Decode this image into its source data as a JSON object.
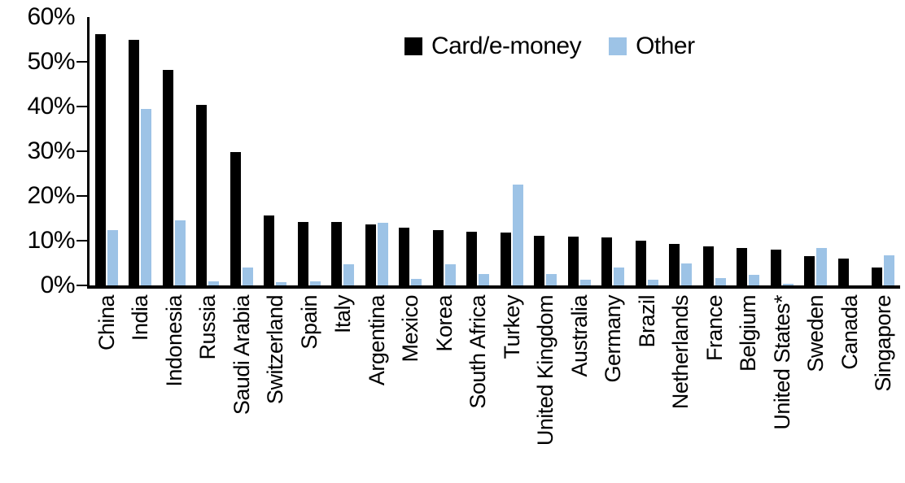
{
  "colors": {
    "card": "#000000",
    "other": "#9DC3E6",
    "axis": "#000000",
    "background": "#FFFFFF"
  },
  "legend": {
    "card_label": "Card/e-money",
    "other_label": "Other"
  },
  "chart_data": {
    "type": "bar",
    "title": "",
    "xlabel": "",
    "ylabel": "",
    "ylim": [
      0,
      60
    ],
    "ytick_labels": [
      "0%",
      "10%",
      "20%",
      "30%",
      "40%",
      "50%",
      "60%"
    ],
    "grid": false,
    "legend_position": "top-center",
    "categories": [
      "China",
      "India",
      "Indonesia",
      "Russia",
      "Saudi Arabia",
      "Switzerland",
      "Spain",
      "Italy",
      "Argentina",
      "Mexico",
      "Korea",
      "South Africa",
      "Turkey",
      "United Kingdom",
      "Australia",
      "Germany",
      "Brazil",
      "Netherlands",
      "France",
      "Belgium",
      "United States*",
      "Sweden",
      "Canada",
      "Singapore"
    ],
    "series": [
      {
        "name": "Card/e-money",
        "color": "#000000",
        "values": [
          56.2,
          55.0,
          48.1,
          40.3,
          29.8,
          15.6,
          14.2,
          14.2,
          13.6,
          13.0,
          12.4,
          12.0,
          11.8,
          11.1,
          10.9,
          10.7,
          10.0,
          9.3,
          8.7,
          8.3,
          8.0,
          6.6,
          6.0,
          4.0
        ]
      },
      {
        "name": "Other",
        "color": "#9DC3E6",
        "values": [
          12.4,
          39.5,
          14.5,
          1.0,
          4.0,
          0.8,
          1.0,
          4.8,
          14.0,
          1.5,
          4.7,
          2.5,
          22.5,
          2.5,
          1.2,
          4.1,
          1.3,
          5.0,
          1.7,
          2.3,
          0.4,
          8.3,
          0.0,
          6.8
        ]
      }
    ]
  }
}
